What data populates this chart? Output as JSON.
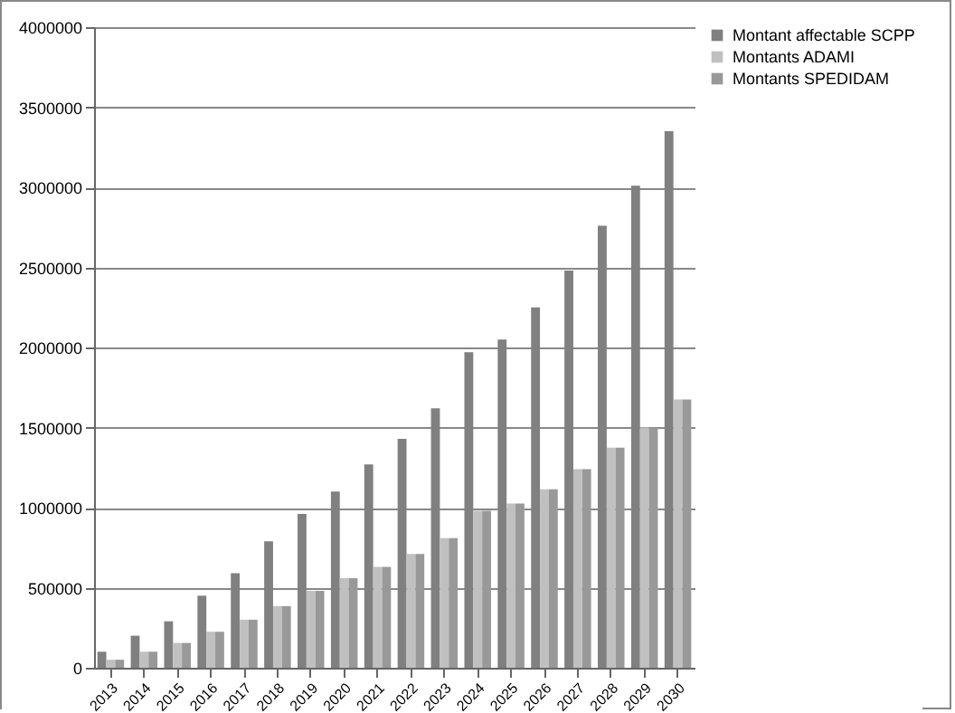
{
  "chart_data": {
    "type": "bar",
    "categories": [
      "2013",
      "2014",
      "2015",
      "2016",
      "2017",
      "2018",
      "2019",
      "2020",
      "2021",
      "2022",
      "2023",
      "2024",
      "2025",
      "2026",
      "2027",
      "2028",
      "2029",
      "2030"
    ],
    "series": [
      {
        "name": "Montant affectable SCPP",
        "color": "#808080",
        "values": [
          100000,
          200000,
          290000,
          450000,
          590000,
          790000,
          960000,
          1100000,
          1270000,
          1430000,
          1620000,
          1970000,
          2050000,
          2250000,
          2480000,
          2760000,
          3010000,
          3350000
        ]
      },
      {
        "name": "Montants ADAMI",
        "color": "#c0c0c0",
        "values": [
          50000,
          100000,
          155000,
          225000,
          300000,
          385000,
          480000,
          560000,
          630000,
          710000,
          810000,
          980000,
          1025000,
          1115000,
          1240000,
          1375000,
          1500000,
          1675000
        ]
      },
      {
        "name": "Montants SPEDIDAM",
        "color": "#999999",
        "values": [
          50000,
          100000,
          155000,
          225000,
          300000,
          385000,
          480000,
          560000,
          630000,
          710000,
          810000,
          980000,
          1025000,
          1115000,
          1240000,
          1375000,
          1500000,
          1675000
        ]
      }
    ],
    "ylim": [
      0,
      4000000
    ],
    "yticks": [
      0,
      500000,
      1000000,
      1500000,
      2000000,
      2500000,
      3000000,
      3500000,
      4000000
    ],
    "grid": "y",
    "legend": "right"
  }
}
